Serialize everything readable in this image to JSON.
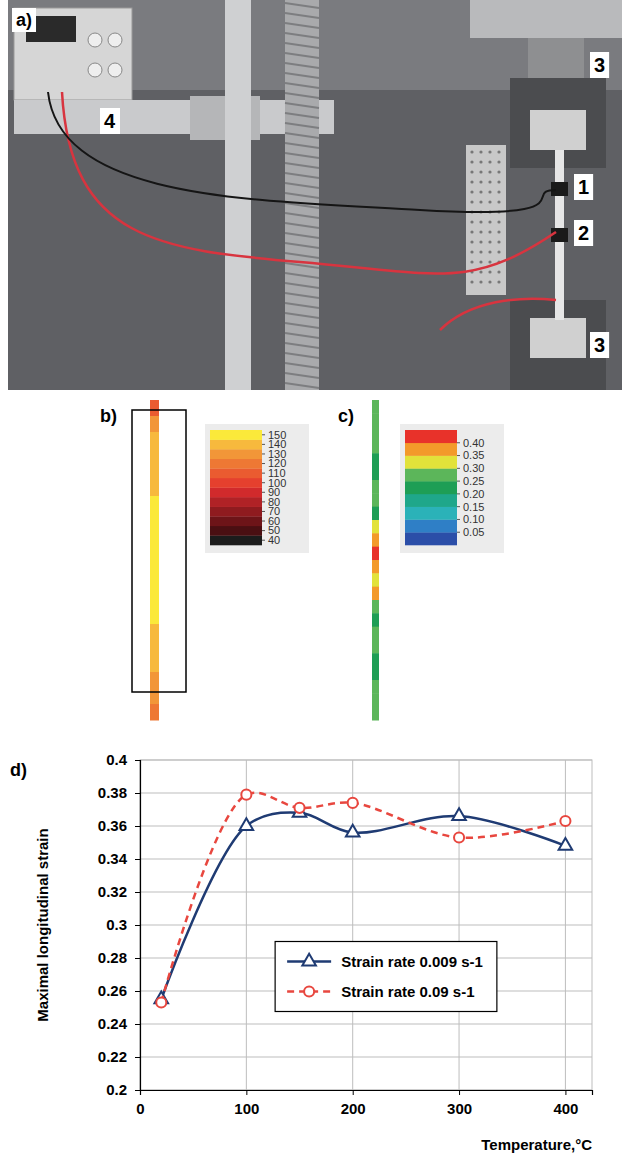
{
  "figure": {
    "photo": {
      "label": "a)",
      "callouts": [
        "4",
        "3",
        "1",
        "2",
        "3"
      ]
    },
    "temperature_field": {
      "label": "b)",
      "values": [
        112,
        128,
        136,
        140,
        135,
        142,
        146,
        150,
        150,
        150,
        150,
        150,
        150,
        146,
        141,
        144,
        138,
        134,
        130,
        118
      ],
      "colorbar": {
        "range": [
          35,
          155
        ],
        "ticks": [
          40,
          50,
          60,
          70,
          80,
          90,
          100,
          110,
          120,
          130,
          140,
          150
        ],
        "colors": [
          "#1c1c1c",
          "#4a0f12",
          "#6d1418",
          "#8f1b1f",
          "#b02226",
          "#d12a2c",
          "#e5402e",
          "#ea5b30",
          "#ee7834",
          "#f29638",
          "#f7b93d",
          "#fbe93a"
        ]
      }
    },
    "strain_field": {
      "label": "c)",
      "values": [
        0.27,
        0.27,
        0.27,
        0.26,
        0.24,
        0.23,
        0.27,
        0.26,
        0.23,
        0.33,
        0.38,
        0.42,
        0.37,
        0.32,
        0.38,
        0.27,
        0.23,
        0.26,
        0.27,
        0.24,
        0.22,
        0.27,
        0.27,
        0.27
      ],
      "colorbar": {
        "range": [
          0,
          0.45
        ],
        "ticks": [
          0.05,
          {
            "value": 0.1,
            "label": "0.10"
          },
          0.15,
          {
            "value": 0.2,
            "label": "0.20"
          },
          0.25,
          {
            "value": 0.3,
            "label": "0.30"
          },
          0.35,
          {
            "value": 0.4,
            "label": "0.40"
          }
        ],
        "colors": [
          "#2b4ea8",
          "#2f7fc6",
          "#2bb2b8",
          "#1fa78a",
          "#1e9e55",
          "#5cb65a",
          "#e2e23a",
          "#f39a2a",
          "#e8322a"
        ]
      }
    },
    "chart_label": "d)"
  },
  "chart_data": {
    "type": "line",
    "x_label": "Temperature,°C",
    "y_label": "Maximal longitudinal strain",
    "x": [
      20,
      100,
      150,
      200,
      300,
      400
    ],
    "series": [
      {
        "name": "Strain rate 0.009 s-1",
        "color": "#1f3b73",
        "marker": "triangle",
        "line_style": "solid",
        "values": [
          0.255,
          0.36,
          0.368,
          0.356,
          0.366,
          0.348
        ]
      },
      {
        "name": "Strain rate 0.09 s-1",
        "color": "#e8473f",
        "marker": "circle",
        "line_style": "dashed",
        "values": [
          0.253,
          0.379,
          0.371,
          0.374,
          0.353,
          0.363
        ]
      }
    ],
    "xlim": [
      0,
      425
    ],
    "xticks": [
      0,
      100,
      200,
      300,
      400
    ],
    "ylim": [
      0.2,
      0.4
    ],
    "yticks": [
      0.2,
      0.22,
      0.24,
      0.26,
      0.28,
      0.3,
      0.32,
      0.34,
      0.36,
      0.38,
      0.4
    ],
    "grid": true,
    "legend": "center"
  }
}
